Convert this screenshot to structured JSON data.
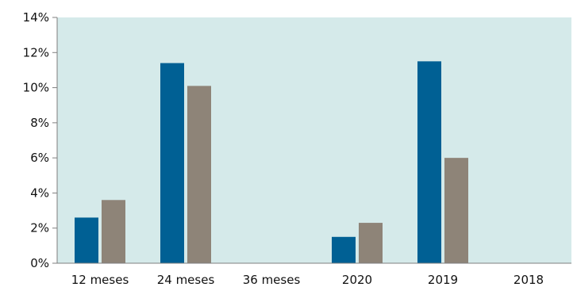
{
  "chart_data": {
    "type": "bar",
    "title": "",
    "xlabel": "",
    "ylabel": "",
    "ylim": [
      0,
      14
    ],
    "y_tick_values": [
      0,
      2,
      4,
      6,
      8,
      10,
      12,
      14
    ],
    "y_tick_labels": [
      "0%",
      "2%",
      "4%",
      "6%",
      "8%",
      "10%",
      "12%",
      "14%"
    ],
    "categories": [
      "12 meses",
      "24 meses",
      "36 meses",
      "2020",
      "2019",
      "2018"
    ],
    "series": [
      {
        "color": "#006094",
        "values": [
          2.6,
          11.4,
          null,
          1.5,
          11.5,
          null
        ]
      },
      {
        "color": "#8e8478",
        "values": [
          3.6,
          10.1,
          null,
          2.3,
          6.0,
          null
        ]
      }
    ],
    "plot_background": "#d5eaea",
    "grid": false,
    "legend": "none"
  }
}
